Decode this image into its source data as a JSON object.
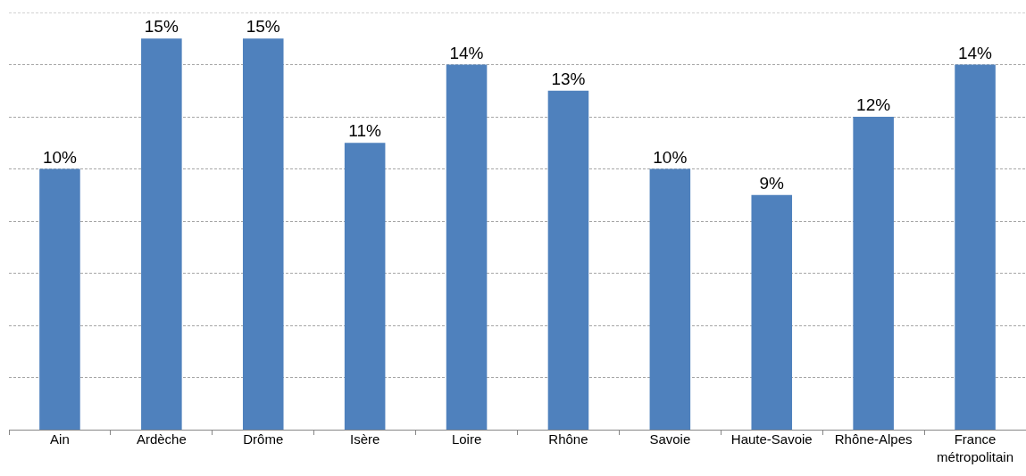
{
  "chart_data": {
    "type": "bar",
    "categories": [
      "Ain",
      "Ardèche",
      "Drôme",
      "Isère",
      "Loire",
      "Rhône",
      "Savoie",
      "Haute-Savoie",
      "Rhône-Alpes",
      "France métropolitain"
    ],
    "values": [
      10,
      15,
      15,
      11,
      14,
      13,
      10,
      9,
      12,
      14
    ],
    "value_labels": [
      "10%",
      "15%",
      "15%",
      "11%",
      "14%",
      "13%",
      "10%",
      "9%",
      "12%",
      "14%"
    ],
    "color": "#4f81bd",
    "ylim": [
      0,
      16
    ],
    "yticks": [
      {
        "value": 2,
        "label": null
      },
      {
        "value": 4,
        "label": null
      },
      {
        "value": 6,
        "label": null
      },
      {
        "value": 8,
        "label": null
      },
      {
        "value": 10,
        "label": null
      },
      {
        "value": 12,
        "label": null
      },
      {
        "value": 14,
        "label": null
      },
      {
        "value": 16,
        "label": null
      }
    ],
    "grid": "y",
    "tick_labels": "x"
  }
}
